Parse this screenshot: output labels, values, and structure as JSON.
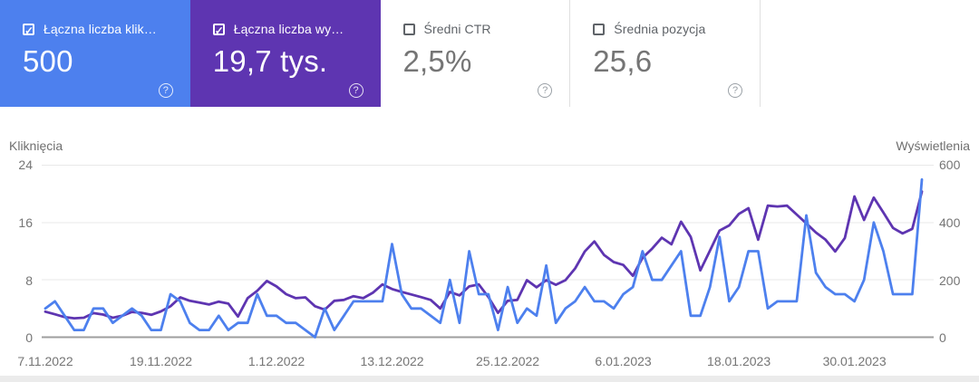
{
  "icons": {
    "check": "✓",
    "help": "?"
  },
  "colors": {
    "clicks": "#4d80ee",
    "impressions": "#5e35b1",
    "grid": "#e9e9e9",
    "baseline": "#9e9e9e",
    "tick_text": "#757575"
  },
  "cards": [
    {
      "id": "total-clicks",
      "label": "Łączna liczba klik…",
      "value": "500",
      "checked": true
    },
    {
      "id": "total-impressions",
      "label": "Łączna liczba wy…",
      "value": "19,7 tys.",
      "checked": true
    },
    {
      "id": "avg-ctr",
      "label": "Średni CTR",
      "value": "2,5%",
      "checked": false
    },
    {
      "id": "avg-position",
      "label": "Średnia pozycja",
      "value": "25,6",
      "checked": false
    }
  ],
  "chart": {
    "left_axis_title": "Kliknięcia",
    "right_axis_title": "Wyświetlenia",
    "left_ticks": [
      "24",
      "16",
      "8",
      "0"
    ],
    "right_ticks": [
      "600",
      "400",
      "200",
      "0"
    ],
    "x_ticks": [
      {
        "label": "7.11.2022",
        "day": 0
      },
      {
        "label": "19.11.2022",
        "day": 12
      },
      {
        "label": "1.12.2022",
        "day": 24
      },
      {
        "label": "13.12.2022",
        "day": 36
      },
      {
        "label": "25.12.2022",
        "day": 48
      },
      {
        "label": "6.01.2023",
        "day": 60
      },
      {
        "label": "18.01.2023",
        "day": 72
      },
      {
        "label": "30.01.2023",
        "day": 84
      }
    ]
  },
  "chart_data": {
    "type": "line",
    "title": "Skuteczność w wyszukiwarce — kliknięcia i wyświetlenia dziennie",
    "xlabel": "",
    "left_ylabel": "Kliknięcia",
    "right_ylabel": "Wyświetlenia",
    "left_ylim": [
      0,
      24
    ],
    "right_ylim": [
      0,
      600
    ],
    "grid": true,
    "legend_position": "none",
    "x": [
      "7.11.2022",
      "8.11.2022",
      "9.11.2022",
      "10.11.2022",
      "11.11.2022",
      "12.11.2022",
      "13.11.2022",
      "14.11.2022",
      "15.11.2022",
      "16.11.2022",
      "17.11.2022",
      "18.11.2022",
      "19.11.2022",
      "20.11.2022",
      "21.11.2022",
      "22.11.2022",
      "23.11.2022",
      "24.11.2022",
      "25.11.2022",
      "26.11.2022",
      "27.11.2022",
      "28.11.2022",
      "29.11.2022",
      "30.11.2022",
      "1.12.2022",
      "2.12.2022",
      "3.12.2022",
      "4.12.2022",
      "5.12.2022",
      "6.12.2022",
      "7.12.2022",
      "8.12.2022",
      "9.12.2022",
      "10.12.2022",
      "11.12.2022",
      "12.12.2022",
      "13.12.2022",
      "14.12.2022",
      "15.12.2022",
      "16.12.2022",
      "17.12.2022",
      "18.12.2022",
      "19.12.2022",
      "20.12.2022",
      "21.12.2022",
      "22.12.2022",
      "23.12.2022",
      "24.12.2022",
      "25.12.2022",
      "26.12.2022",
      "27.12.2022",
      "28.12.2022",
      "29.12.2022",
      "30.12.2022",
      "31.12.2022",
      "1.01.2023",
      "2.01.2023",
      "3.01.2023",
      "4.01.2023",
      "5.01.2023",
      "6.01.2023",
      "7.01.2023",
      "8.01.2023",
      "9.01.2023",
      "10.01.2023",
      "11.01.2023",
      "12.01.2023",
      "13.01.2023",
      "14.01.2023",
      "15.01.2023",
      "16.01.2023",
      "17.01.2023",
      "18.01.2023",
      "19.01.2023",
      "20.01.2023",
      "21.01.2023",
      "22.01.2023",
      "23.01.2023",
      "24.01.2023",
      "25.01.2023",
      "26.01.2023",
      "27.01.2023",
      "28.01.2023",
      "29.01.2023",
      "30.01.2023",
      "31.01.2023",
      "1.02.2023",
      "2.02.2023",
      "3.02.2023",
      "4.02.2023",
      "5.02.2023",
      "6.02.2023"
    ],
    "series": [
      {
        "name": "Łączna liczba kliknięć",
        "axis": "left",
        "color": "#4d80ee",
        "total_label": "500",
        "values": [
          4,
          5,
          3,
          1,
          1,
          4,
          4,
          2,
          3,
          4,
          3,
          1,
          1,
          6,
          5,
          2,
          1,
          1,
          3,
          1,
          2,
          2,
          6,
          3,
          3,
          2,
          2,
          1,
          0,
          4,
          1,
          3,
          5,
          5,
          5,
          5,
          13,
          6,
          4,
          4,
          3,
          2,
          8,
          2,
          12,
          6,
          6,
          1,
          7,
          2,
          4,
          3,
          10,
          2,
          4,
          5,
          7,
          5,
          5,
          4,
          6,
          7,
          12,
          8,
          8,
          10,
          12,
          3,
          3,
          7,
          14,
          5,
          7,
          12,
          12,
          4,
          5,
          5,
          5,
          17,
          9,
          7,
          6,
          6,
          5,
          8,
          16,
          12,
          6,
          6,
          6,
          22
        ]
      },
      {
        "name": "Łączna liczba wyświetleń",
        "axis": "right",
        "color": "#5e35b1",
        "total_label": "19,7 tys.",
        "values": [
          89,
          80,
          70,
          66,
          68,
          84,
          79,
          68,
          75,
          88,
          85,
          78,
          90,
          108,
          139,
          127,
          121,
          114,
          124,
          117,
          72,
          136,
          162,
          196,
          177,
          150,
          136,
          139,
          108,
          96,
          127,
          130,
          143,
          136,
          155,
          184,
          168,
          158,
          149,
          140,
          130,
          100,
          158,
          146,
          177,
          184,
          140,
          85,
          127,
          130,
          199,
          174,
          199,
          183,
          199,
          240,
          299,
          334,
          287,
          262,
          252,
          214,
          277,
          309,
          347,
          324,
          403,
          350,
          233,
          302,
          372,
          390,
          430,
          450,
          340,
          459,
          456,
          459,
          428,
          397,
          365,
          340,
          299,
          346,
          491,
          409,
          487,
          435,
          381,
          362,
          378,
          508
        ]
      }
    ]
  }
}
